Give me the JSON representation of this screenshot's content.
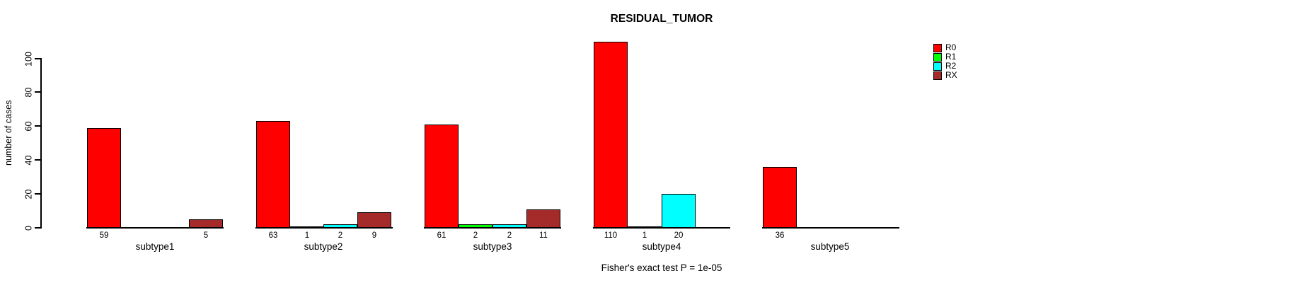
{
  "chart_data": {
    "type": "bar",
    "title": "RESIDUAL_TUMOR",
    "ylabel": "number of cases",
    "xlabel": "",
    "footnote": "Fisher's exact test P = 1e-05",
    "categories": [
      "subtype1",
      "subtype2",
      "subtype3",
      "subtype4",
      "subtype5"
    ],
    "series": [
      {
        "name": "R0",
        "color": "#FF0000",
        "values": [
          59,
          63,
          61,
          110,
          36
        ]
      },
      {
        "name": "R1",
        "color": "#00FF00",
        "values": [
          0,
          1,
          2,
          1,
          0
        ]
      },
      {
        "name": "R2",
        "color": "#00FFFF",
        "values": [
          0,
          2,
          2,
          20,
          0
        ]
      },
      {
        "name": "RX",
        "color": "#A52A2A",
        "values": [
          5,
          9,
          11,
          0,
          0
        ]
      }
    ],
    "yticks": [
      0,
      20,
      40,
      60,
      80,
      100
    ],
    "ylim": [
      0,
      110
    ],
    "grid": false,
    "legend_position": "top-right-inside",
    "bar_value_labels": "shown below baseline for non-zero bars",
    "background_color": "#FFFFFF",
    "axis_color": "#000000"
  }
}
